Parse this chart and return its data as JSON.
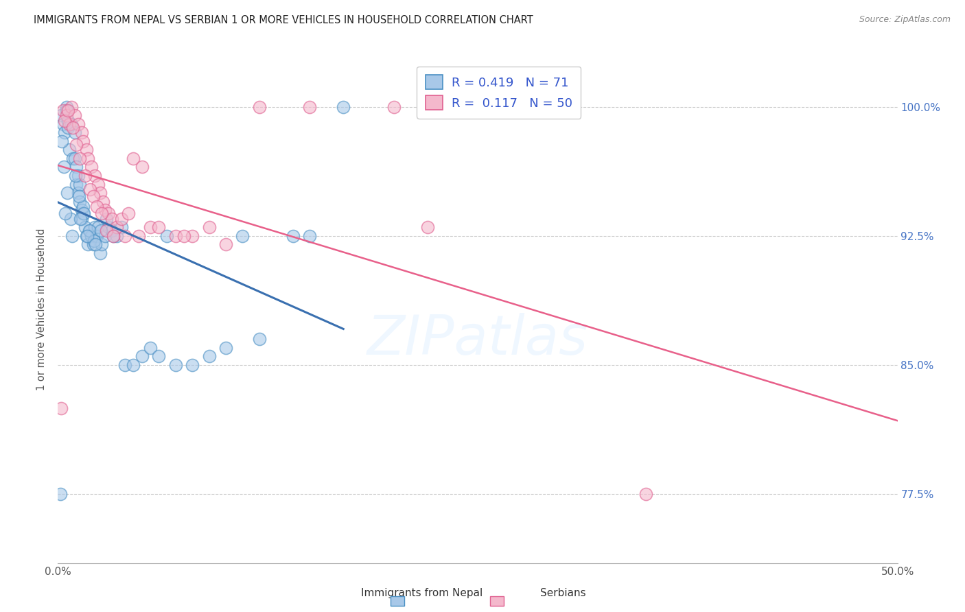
{
  "title": "IMMIGRANTS FROM NEPAL VS SERBIAN 1 OR MORE VEHICLES IN HOUSEHOLD CORRELATION CHART",
  "source": "Source: ZipAtlas.com",
  "ylabel": "1 or more Vehicles in Household",
  "ytick_values": [
    77.5,
    85.0,
    92.5,
    100.0
  ],
  "ytick_labels": [
    "77.5%",
    "85.0%",
    "92.5%",
    "100.0%"
  ],
  "xlim": [
    0.0,
    50.0
  ],
  "ylim": [
    73.5,
    103.0
  ],
  "color_nepal_fill": "#a8c8e8",
  "color_nepal_edge": "#4a90c4",
  "color_serbian_fill": "#f4b8cc",
  "color_serbian_edge": "#e06090",
  "color_nepal_line": "#3a70b0",
  "color_serbian_line": "#e8608a",
  "nepal_x": [
    0.15,
    0.2,
    0.3,
    0.4,
    0.5,
    0.5,
    0.6,
    0.6,
    0.7,
    0.8,
    0.9,
    1.0,
    1.0,
    1.1,
    1.1,
    1.2,
    1.2,
    1.3,
    1.3,
    1.4,
    1.4,
    1.5,
    1.5,
    1.6,
    1.7,
    1.8,
    1.9,
    2.0,
    2.1,
    2.2,
    2.3,
    2.4,
    2.5,
    2.6,
    2.8,
    3.0,
    3.2,
    3.5,
    3.8,
    4.0,
    4.5,
    5.0,
    5.5,
    6.0,
    6.5,
    7.0,
    8.0,
    9.0,
    10.0,
    11.0,
    12.0,
    14.0,
    15.0,
    17.0,
    0.25,
    0.35,
    0.55,
    0.75,
    1.05,
    1.25,
    1.55,
    1.85,
    2.15,
    2.55,
    2.9,
    3.3,
    0.45,
    0.85,
    1.35,
    1.75,
    2.25
  ],
  "nepal_y": [
    77.5,
    99.5,
    99.0,
    98.5,
    100.0,
    99.8,
    99.2,
    98.8,
    97.5,
    99.0,
    97.0,
    98.5,
    97.0,
    96.5,
    95.5,
    95.0,
    96.0,
    94.5,
    95.5,
    94.0,
    93.5,
    93.8,
    94.2,
    93.0,
    92.5,
    92.0,
    92.8,
    92.5,
    92.0,
    93.0,
    92.5,
    93.0,
    91.5,
    92.0,
    92.5,
    93.0,
    92.8,
    92.5,
    93.0,
    85.0,
    85.0,
    85.5,
    86.0,
    85.5,
    92.5,
    85.0,
    85.0,
    85.5,
    86.0,
    92.5,
    86.5,
    92.5,
    92.5,
    100.0,
    98.0,
    96.5,
    95.0,
    93.5,
    96.0,
    94.8,
    93.8,
    92.8,
    92.2,
    92.8,
    93.5,
    92.5,
    93.8,
    92.5,
    93.5,
    92.5,
    92.0
  ],
  "serbian_x": [
    0.2,
    0.3,
    0.5,
    0.7,
    0.8,
    1.0,
    1.2,
    1.4,
    1.5,
    1.7,
    1.8,
    2.0,
    2.2,
    2.4,
    2.5,
    2.7,
    2.8,
    3.0,
    3.2,
    3.5,
    3.8,
    4.0,
    4.2,
    4.5,
    5.0,
    5.5,
    6.0,
    7.0,
    8.0,
    9.0,
    10.0,
    12.0,
    15.0,
    20.0,
    22.0,
    35.0,
    0.4,
    0.6,
    0.9,
    1.1,
    1.3,
    1.6,
    1.9,
    2.1,
    2.3,
    2.6,
    2.9,
    3.3,
    4.8,
    7.5
  ],
  "serbian_y": [
    82.5,
    99.8,
    99.5,
    99.0,
    100.0,
    99.5,
    99.0,
    98.5,
    98.0,
    97.5,
    97.0,
    96.5,
    96.0,
    95.5,
    95.0,
    94.5,
    94.0,
    93.8,
    93.5,
    93.0,
    93.5,
    92.5,
    93.8,
    97.0,
    96.5,
    93.0,
    93.0,
    92.5,
    92.5,
    93.0,
    92.0,
    100.0,
    100.0,
    100.0,
    93.0,
    77.5,
    99.2,
    99.8,
    98.8,
    97.8,
    97.0,
    96.0,
    95.2,
    94.8,
    94.2,
    93.8,
    92.8,
    92.5,
    92.5,
    92.5
  ]
}
